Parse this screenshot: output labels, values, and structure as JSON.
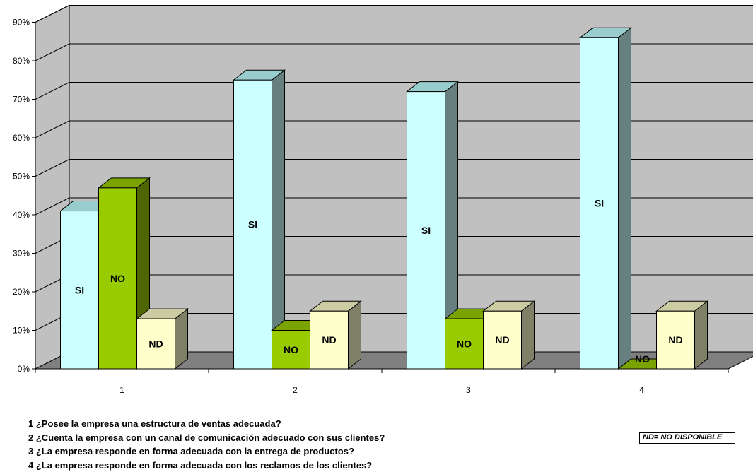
{
  "chart_data": {
    "type": "bar",
    "categories": [
      "1",
      "2",
      "3",
      "4"
    ],
    "series": [
      {
        "name": "SI",
        "values": [
          41,
          75,
          72,
          86
        ]
      },
      {
        "name": "NO",
        "values": [
          47,
          10,
          13,
          0
        ]
      },
      {
        "name": "ND",
        "values": [
          13,
          15,
          15,
          15
        ]
      }
    ],
    "ylim": [
      0,
      90
    ],
    "yticks": [
      "0%",
      "10%",
      "20%",
      "30%",
      "40%",
      "50%",
      "60%",
      "70%",
      "80%",
      "90%"
    ],
    "grid": true,
    "style": "3d-clustered-column",
    "colors": {
      "SI": "#CCFFFF",
      "SI_side": "#668080",
      "SI_top": "#99CCCC",
      "NO": "#99CC00",
      "NO_side": "#4D6600",
      "NO_top": "#7AA300",
      "ND": "#FFFFCC",
      "ND_side": "#808066",
      "ND_top": "#CCCCA3",
      "wall": "#C0C0C0",
      "floor": "#808080"
    }
  },
  "notes": [
    "1 ¿Posee la empresa una estructura de ventas adecuada?",
    "2 ¿Cuenta la empresa con un canal de comunicación adecuado con sus clientes?",
    "3 ¿La empresa responde en forma adecuada con la entrega de productos?",
    "4 ¿La empresa responde en forma adecuada con los reclamos de los clientes?"
  ],
  "legend_box": "ND= NO DISPONIBLE"
}
